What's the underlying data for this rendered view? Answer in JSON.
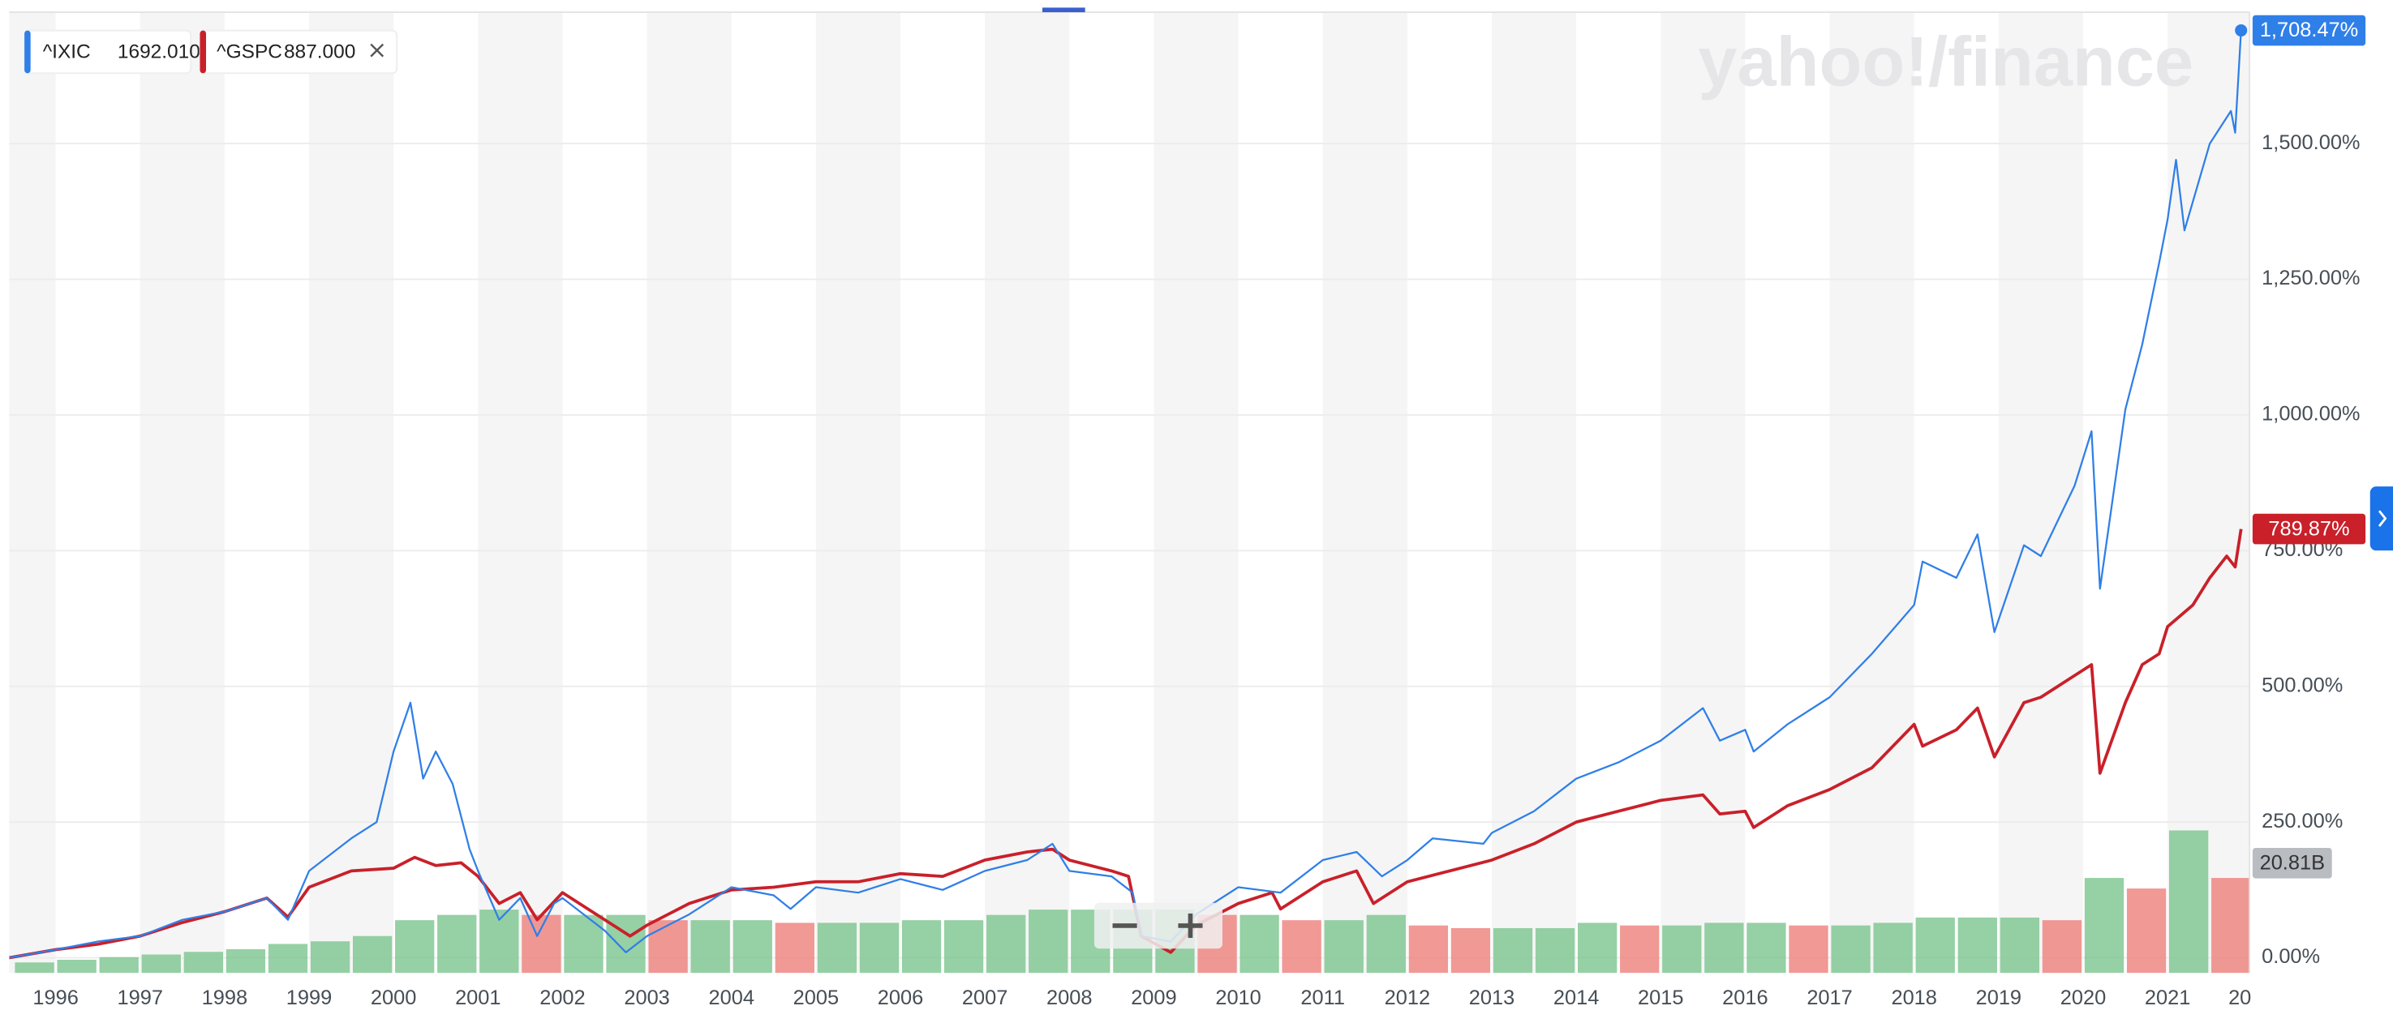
{
  "chart_data": {
    "type": "line",
    "watermark": "yahoo!/finance",
    "xlim": [
      1995.45,
      2021.97
    ],
    "xticks": [
      1996,
      1997,
      1998,
      1999,
      2000,
      2001,
      2002,
      2003,
      2004,
      2005,
      2006,
      2007,
      2008,
      2009,
      2010,
      2011,
      2012,
      2013,
      2014,
      2015,
      2016,
      2017,
      2018,
      2019,
      2020,
      2021,
      {
        "value": 2022,
        "label": "20"
      }
    ],
    "ylim": [
      -28,
      1742
    ],
    "yticks": [
      {
        "value": 0,
        "label": "0.00%"
      },
      {
        "value": 250,
        "label": "250.00%"
      },
      {
        "value": 500,
        "label": "500.00%"
      },
      {
        "value": 750,
        "label": "750.00%"
      },
      {
        "value": 1000,
        "label": "1,000.00%"
      },
      {
        "value": 1250,
        "label": "1,250.00%"
      },
      {
        "value": 1500,
        "label": "1,500.00%"
      }
    ],
    "grid": true,
    "year_stripes": true,
    "series": [
      {
        "name": "^IXIC",
        "color": "#2f7fe8",
        "quote": {
          "value": 1692.01,
          "label": "1692.010"
        },
        "end_label": "1,708.47%",
        "x": [
          1995.45,
          1996.0,
          1996.5,
          1997.0,
          1997.5,
          1998.0,
          1998.5,
          1998.75,
          1999.0,
          1999.5,
          1999.8,
          2000.0,
          2000.2,
          2000.35,
          2000.5,
          2000.7,
          2000.9,
          2001.0,
          2001.25,
          2001.5,
          2001.7,
          2001.9,
          2002.0,
          2002.5,
          2002.75,
          2003.0,
          2003.5,
          2004.0,
          2004.5,
          2004.7,
          2005.0,
          2005.5,
          2006.0,
          2006.5,
          2007.0,
          2007.5,
          2007.8,
          2008.0,
          2008.5,
          2008.75,
          2008.85,
          2009.2,
          2009.5,
          2010.0,
          2010.5,
          2011.0,
          2011.4,
          2011.7,
          2012.0,
          2012.3,
          2012.9,
          2013.0,
          2013.5,
          2014.0,
          2014.5,
          2015.0,
          2015.5,
          2015.7,
          2016.0,
          2016.1,
          2016.5,
          2017.0,
          2017.5,
          2018.0,
          2018.1,
          2018.5,
          2018.75,
          2018.95,
          2019.3,
          2019.5,
          2019.9,
          2020.1,
          2020.2,
          2020.5,
          2020.7,
          2020.9,
          2021.0,
          2021.1,
          2021.2,
          2021.5,
          2021.75,
          2021.8,
          2021.87
        ],
        "values": [
          0,
          15,
          30,
          40,
          70,
          85,
          110,
          70,
          160,
          220,
          250,
          380,
          470,
          330,
          380,
          320,
          200,
          160,
          70,
          110,
          40,
          100,
          110,
          50,
          10,
          40,
          80,
          130,
          115,
          90,
          130,
          120,
          145,
          125,
          160,
          180,
          210,
          160,
          150,
          120,
          40,
          30,
          80,
          130,
          120,
          180,
          195,
          150,
          180,
          220,
          210,
          230,
          270,
          330,
          360,
          400,
          460,
          400,
          420,
          380,
          430,
          480,
          560,
          650,
          730,
          700,
          780,
          600,
          760,
          740,
          870,
          970,
          680,
          1010,
          1130,
          1280,
          1360,
          1470,
          1340,
          1500,
          1560,
          1520,
          1708.47
        ]
      },
      {
        "name": "^GSPC",
        "color": "#c9202a",
        "quote": {
          "value": 887,
          "label": "887.000"
        },
        "end_label": "789.87%",
        "x": [
          1995.45,
          1996.0,
          1996.5,
          1997.0,
          1997.5,
          1998.0,
          1998.5,
          1998.75,
          1999.0,
          1999.5,
          2000.0,
          2000.25,
          2000.5,
          2000.8,
          2001.0,
          2001.25,
          2001.5,
          2001.7,
          2002.0,
          2002.5,
          2002.8,
          2003.0,
          2003.5,
          2004.0,
          2004.5,
          2005.0,
          2005.5,
          2006.0,
          2006.5,
          2007.0,
          2007.5,
          2007.8,
          2008.0,
          2008.5,
          2008.7,
          2008.85,
          2009.2,
          2009.5,
          2010.0,
          2010.4,
          2010.5,
          2011.0,
          2011.4,
          2011.6,
          2012.0,
          2012.5,
          2013.0,
          2013.5,
          2014.0,
          2014.5,
          2015.0,
          2015.5,
          2015.7,
          2016.0,
          2016.1,
          2016.5,
          2017.0,
          2017.5,
          2018.0,
          2018.1,
          2018.5,
          2018.75,
          2018.95,
          2019.3,
          2019.5,
          2019.9,
          2020.1,
          2020.2,
          2020.5,
          2020.7,
          2020.9,
          2021.0,
          2021.3,
          2021.5,
          2021.7,
          2021.8,
          2021.87
        ],
        "values": [
          0,
          15,
          25,
          40,
          65,
          85,
          110,
          75,
          130,
          160,
          165,
          185,
          170,
          175,
          150,
          100,
          120,
          70,
          120,
          70,
          40,
          60,
          100,
          125,
          130,
          140,
          140,
          155,
          150,
          180,
          195,
          200,
          180,
          160,
          150,
          40,
          10,
          60,
          100,
          120,
          90,
          140,
          160,
          100,
          140,
          160,
          180,
          210,
          250,
          270,
          290,
          300,
          265,
          270,
          240,
          280,
          310,
          350,
          430,
          390,
          420,
          460,
          370,
          470,
          480,
          520,
          540,
          340,
          470,
          540,
          560,
          610,
          650,
          700,
          740,
          720,
          789.87
        ]
      }
    ],
    "volume": {
      "vlim": [
        0,
        182
      ],
      "last": {
        "value": 20.81,
        "label": "20.81B"
      },
      "x": [
        1995.5,
        1996.0,
        1996.5,
        1997.0,
        1997.5,
        1998.0,
        1998.5,
        1999.0,
        1999.5,
        2000.0,
        2000.5,
        2001.0,
        2001.5,
        2002.0,
        2002.5,
        2003.0,
        2003.5,
        2004.0,
        2004.5,
        2005.0,
        2005.5,
        2006.0,
        2006.5,
        2007.0,
        2007.5,
        2008.0,
        2008.5,
        2009.0,
        2009.5,
        2010.0,
        2010.5,
        2011.0,
        2011.5,
        2012.0,
        2012.5,
        2013.0,
        2013.5,
        2014.0,
        2014.5,
        2015.0,
        2015.5,
        2016.0,
        2016.5,
        2017.0,
        2017.5,
        2018.0,
        2018.5,
        2019.0,
        2019.5,
        2020.0,
        2020.5,
        2021.0,
        2021.5
      ],
      "values": [
        2,
        2.5,
        3,
        3.5,
        4,
        4.5,
        5.5,
        6,
        7,
        10,
        11,
        12,
        11,
        11,
        11,
        10,
        10,
        10,
        9.5,
        9.5,
        9.5,
        10,
        10,
        11,
        12,
        12,
        12,
        12,
        11,
        11,
        10,
        10,
        11,
        9,
        8.5,
        8.5,
        8.5,
        9.5,
        9,
        9,
        9.5,
        9.5,
        9,
        9,
        9.5,
        10.5,
        10.5,
        10.5,
        10,
        18,
        16,
        27,
        18
      ]
    }
  }
}
